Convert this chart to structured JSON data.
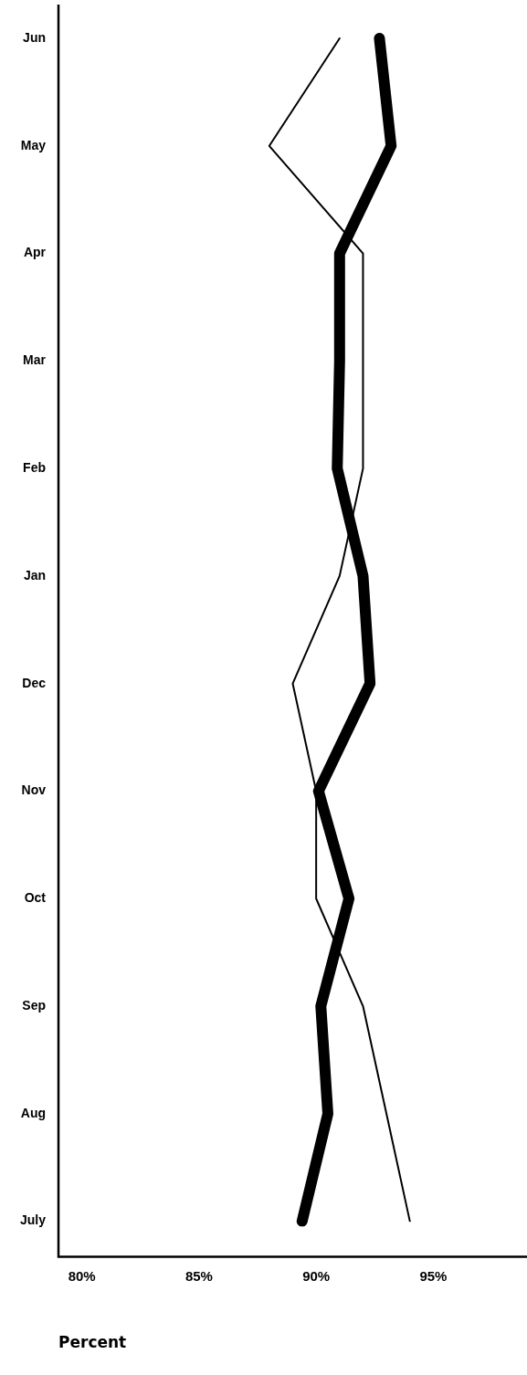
{
  "chart_data": {
    "type": "line",
    "orientation": "horizontal",
    "xlabel": "Percent",
    "categories": [
      "Jun",
      "May",
      "Apr",
      "Mar",
      "Feb",
      "Jan",
      "Dec",
      "Nov",
      "Oct",
      "Sep",
      "Aug",
      "July"
    ],
    "series": [
      {
        "color": "#000000",
        "values": [
          91.0,
          88.0,
          92.0,
          92.0,
          92.0,
          91.0,
          89.0,
          90.0,
          90.0,
          92.0,
          93.0,
          94.0
        ]
      },
      {
        "color": "#000000",
        "values": [
          92.7,
          93.2,
          91.0,
          91.0,
          90.9,
          92.0,
          92.3,
          90.1,
          91.4,
          90.2,
          90.5,
          89.4
        ]
      }
    ],
    "xlim": [
      79,
      99
    ],
    "xticks": [
      {
        "value": 80,
        "label": "80%"
      },
      {
        "value": 85,
        "label": "85%"
      },
      {
        "value": 90,
        "label": "90%"
      },
      {
        "value": 95,
        "label": "95%"
      }
    ],
    "grid": false,
    "legend": false,
    "marker": "none",
    "line_style": "solid"
  }
}
